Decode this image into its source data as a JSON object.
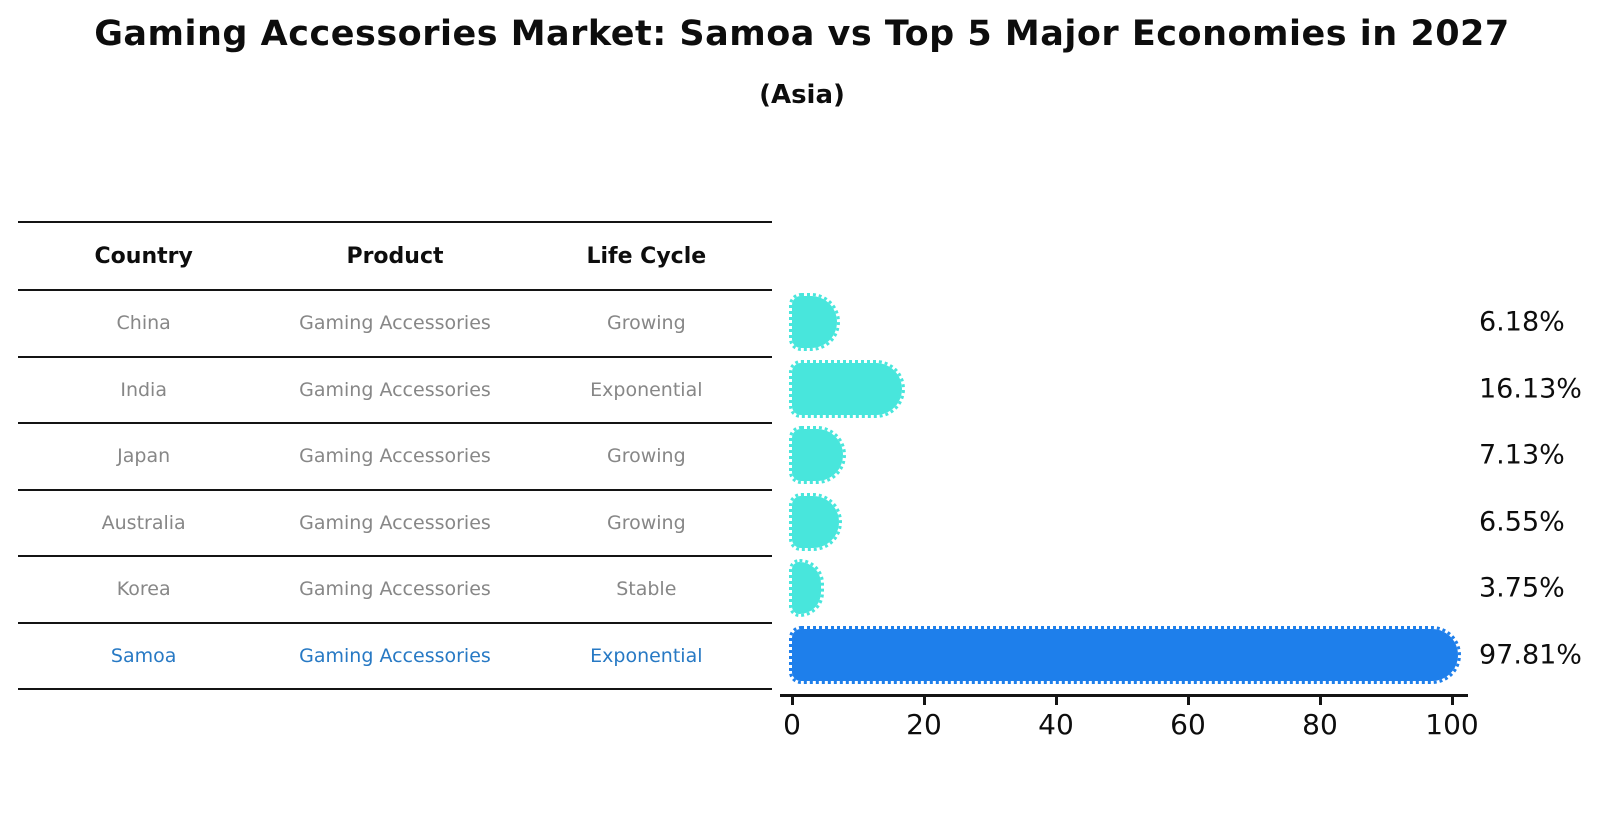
{
  "chart_data": {
    "type": "bar",
    "orientation": "horizontal",
    "title": "Gaming Accessories Market: Samoa vs Top 5 Major Economies in 2027",
    "subtitle": "(Asia)",
    "categories": [
      "China",
      "India",
      "Japan",
      "Australia",
      "Korea",
      "Samoa"
    ],
    "values": [
      6.18,
      16.13,
      7.13,
      6.55,
      3.75,
      97.81
    ],
    "value_labels": [
      "6.18%",
      "16.13%",
      "7.13%",
      "6.55%",
      "3.75%",
      "97.81%"
    ],
    "highlight_index": 5,
    "x_ticks": [
      "0",
      "20",
      "40",
      "60",
      "80",
      "100"
    ],
    "xlim": [
      0,
      100
    ],
    "grid": false,
    "legend": "none",
    "colors": {
      "bar_default": "#48E6DC",
      "bar_highlight": "#1E7FEB",
      "highlight_text": "#2779C4",
      "row_text": "#878787",
      "axis": "#141414"
    }
  },
  "table": {
    "headers": [
      "Country",
      "Product",
      "Life Cycle"
    ],
    "rows": [
      {
        "country": "China",
        "product": "Gaming Accessories",
        "life_cycle": "Growing"
      },
      {
        "country": "India",
        "product": "Gaming Accessories",
        "life_cycle": "Exponential"
      },
      {
        "country": "Japan",
        "product": "Gaming Accessories",
        "life_cycle": "Growing"
      },
      {
        "country": "Australia",
        "product": "Gaming Accessories",
        "life_cycle": "Growing"
      },
      {
        "country": "Korea",
        "product": "Gaming Accessories",
        "life_cycle": "Stable"
      },
      {
        "country": "Samoa",
        "product": "Gaming Accessories",
        "life_cycle": "Exponential"
      }
    ],
    "highlighted_country": "Samoa"
  }
}
